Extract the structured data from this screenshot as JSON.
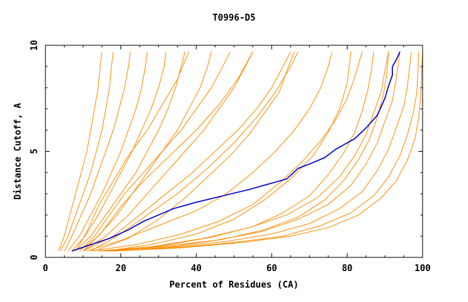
{
  "chart_data": {
    "type": "line",
    "title": "T0996-D5",
    "xlabel": "Percent of Residues (CA)",
    "ylabel": "Distance Cutoff, A",
    "xlim": [
      0,
      100
    ],
    "ylim": [
      0,
      10
    ],
    "x_ticks": [
      0,
      20,
      40,
      60,
      80,
      100
    ],
    "y_ticks": [
      0,
      5,
      10
    ],
    "grid": false,
    "colors": {
      "models": "#ff8c00",
      "highlight": "#0000cc"
    },
    "series": [
      {
        "values": [
          [
            7,
            0.3
          ],
          [
            12,
            0.6
          ],
          [
            17,
            0.9
          ],
          [
            22,
            1.3
          ],
          [
            26,
            1.7
          ],
          [
            30,
            2.0
          ],
          [
            34,
            2.3
          ],
          [
            40,
            2.6
          ],
          [
            47,
            2.9
          ],
          [
            54,
            3.2
          ],
          [
            60,
            3.5
          ],
          [
            64,
            3.7
          ],
          [
            67,
            4.2
          ],
          [
            70,
            4.4
          ],
          [
            74,
            4.7
          ],
          [
            77,
            5.1
          ],
          [
            82,
            5.6
          ],
          [
            85,
            6.1
          ],
          [
            88,
            6.7
          ],
          [
            90,
            7.5
          ],
          [
            91,
            8.1
          ],
          [
            92,
            8.6
          ],
          [
            92,
            9.0
          ],
          [
            93,
            9.3
          ],
          [
            94,
            9.7
          ]
        ]
      },
      {
        "values": [
          [
            3.5,
            0.3
          ],
          [
            5,
            1.0
          ],
          [
            6.5,
            2.0
          ],
          [
            8,
            3.0
          ],
          [
            9.5,
            4.0
          ],
          [
            11,
            5.0
          ],
          [
            12,
            6.0
          ],
          [
            13,
            7.0
          ],
          [
            14,
            8.0
          ],
          [
            14.5,
            9.0
          ],
          [
            15,
            9.7
          ]
        ]
      },
      {
        "values": [
          [
            4,
            0.3
          ],
          [
            6,
            1.0
          ],
          [
            8,
            2.0
          ],
          [
            10,
            3.0
          ],
          [
            12,
            4.0
          ],
          [
            13.5,
            5.0
          ],
          [
            15,
            6.0
          ],
          [
            16,
            7.0
          ],
          [
            17,
            8.0
          ],
          [
            17.5,
            9.0
          ],
          [
            18,
            9.7
          ]
        ]
      },
      {
        "values": [
          [
            5,
            0.3
          ],
          [
            7,
            1.0
          ],
          [
            9.5,
            2.0
          ],
          [
            12,
            3.0
          ],
          [
            14,
            4.0
          ],
          [
            16,
            5.0
          ],
          [
            18,
            6.0
          ],
          [
            19.5,
            7.0
          ],
          [
            21,
            8.0
          ],
          [
            22,
            9.0
          ],
          [
            22.5,
            9.7
          ]
        ]
      },
      {
        "values": [
          [
            6,
            0.3
          ],
          [
            9,
            1.0
          ],
          [
            12,
            2.0
          ],
          [
            15,
            3.0
          ],
          [
            17.5,
            4.0
          ],
          [
            20,
            5.0
          ],
          [
            22,
            6.0
          ],
          [
            24,
            7.0
          ],
          [
            25.5,
            8.0
          ],
          [
            26.5,
            9.0
          ],
          [
            27,
            9.7
          ]
        ]
      },
      {
        "values": [
          [
            7,
            0.3
          ],
          [
            10.5,
            1.0
          ],
          [
            14,
            2.0
          ],
          [
            17,
            3.0
          ],
          [
            20,
            4.0
          ],
          [
            23,
            5.0
          ],
          [
            25.5,
            6.0
          ],
          [
            28,
            7.0
          ],
          [
            30,
            8.0
          ],
          [
            31.5,
            9.0
          ],
          [
            32,
            9.7
          ]
        ]
      },
      {
        "values": [
          [
            8,
            0.3
          ],
          [
            12,
            1.0
          ],
          [
            16,
            2.0
          ],
          [
            20,
            3.0
          ],
          [
            24,
            4.0
          ],
          [
            27,
            5.0
          ],
          [
            30,
            6.0
          ],
          [
            32.5,
            7.0
          ],
          [
            34.5,
            8.0
          ],
          [
            36,
            9.0
          ],
          [
            37,
            9.7
          ]
        ]
      },
      {
        "values": [
          [
            9,
            0.3
          ],
          [
            14,
            1.0
          ],
          [
            19,
            2.0
          ],
          [
            23,
            3.0
          ],
          [
            27,
            4.0
          ],
          [
            31,
            5.0
          ],
          [
            35,
            6.0
          ],
          [
            38,
            7.0
          ],
          [
            41,
            8.0
          ],
          [
            43,
            9.0
          ],
          [
            44,
            9.7
          ]
        ]
      },
      {
        "values": [
          [
            10,
            0.3
          ],
          [
            16,
            1.0
          ],
          [
            22,
            2.0
          ],
          [
            27,
            3.0
          ],
          [
            32,
            4.0
          ],
          [
            37,
            5.0
          ],
          [
            42,
            6.0
          ],
          [
            46,
            7.0
          ],
          [
            50,
            8.0
          ],
          [
            53,
            9.0
          ],
          [
            55,
            9.7
          ]
        ]
      },
      {
        "values": [
          [
            10,
            0.3
          ],
          [
            18,
            1.0
          ],
          [
            25,
            2.0
          ],
          [
            32,
            3.0
          ],
          [
            39,
            4.0
          ],
          [
            45,
            5.0
          ],
          [
            51,
            6.0
          ],
          [
            56,
            7.0
          ],
          [
            60,
            8.0
          ],
          [
            63,
            9.0
          ],
          [
            65,
            9.7
          ]
        ]
      },
      {
        "values": [
          [
            11,
            0.3
          ],
          [
            20,
            0.8
          ],
          [
            30,
            1.5
          ],
          [
            40,
            2.2
          ],
          [
            48,
            3.0
          ],
          [
            55,
            4.0
          ],
          [
            61,
            5.0
          ],
          [
            66,
            6.0
          ],
          [
            70,
            7.0
          ],
          [
            73,
            8.0
          ],
          [
            75,
            9.0
          ],
          [
            76,
            9.7
          ]
        ]
      },
      {
        "values": [
          [
            12,
            0.3
          ],
          [
            24,
            0.6
          ],
          [
            36,
            1.1
          ],
          [
            46,
            1.7
          ],
          [
            55,
            2.5
          ],
          [
            62,
            3.5
          ],
          [
            68,
            4.5
          ],
          [
            73,
            5.5
          ],
          [
            77,
            6.5
          ],
          [
            80,
            7.5
          ],
          [
            82,
            8.5
          ],
          [
            84,
            9.7
          ]
        ]
      },
      {
        "values": [
          [
            14,
            0.3
          ],
          [
            28,
            0.5
          ],
          [
            42,
            0.9
          ],
          [
            54,
            1.4
          ],
          [
            64,
            2.0
          ],
          [
            72,
            2.8
          ],
          [
            78,
            3.8
          ],
          [
            82,
            4.8
          ],
          [
            85,
            5.8
          ],
          [
            87,
            6.8
          ],
          [
            89,
            7.8
          ],
          [
            90,
            8.8
          ],
          [
            91,
            9.7
          ]
        ]
      },
      {
        "values": [
          [
            15,
            0.3
          ],
          [
            30,
            0.5
          ],
          [
            45,
            0.8
          ],
          [
            57,
            1.2
          ],
          [
            67,
            1.8
          ],
          [
            75,
            2.5
          ],
          [
            81,
            3.4
          ],
          [
            85,
            4.4
          ],
          [
            88,
            5.4
          ],
          [
            90,
            6.4
          ],
          [
            92,
            7.4
          ],
          [
            93,
            8.4
          ],
          [
            94,
            9.7
          ]
        ]
      },
      {
        "values": [
          [
            16,
            0.3
          ],
          [
            32,
            0.45
          ],
          [
            48,
            0.75
          ],
          [
            60,
            1.1
          ],
          [
            70,
            1.6
          ],
          [
            78,
            2.3
          ],
          [
            84,
            3.1
          ],
          [
            88,
            4.1
          ],
          [
            91,
            5.1
          ],
          [
            93,
            6.1
          ],
          [
            95,
            7.1
          ],
          [
            96,
            8.1
          ],
          [
            97,
            9.7
          ]
        ]
      },
      {
        "values": [
          [
            17,
            0.3
          ],
          [
            34,
            0.45
          ],
          [
            50,
            0.7
          ],
          [
            63,
            1.0
          ],
          [
            73,
            1.5
          ],
          [
            81,
            2.1
          ],
          [
            87,
            2.9
          ],
          [
            91,
            3.8
          ],
          [
            94,
            4.8
          ],
          [
            96,
            5.8
          ],
          [
            97.5,
            6.8
          ],
          [
            98.5,
            7.8
          ],
          [
            99,
            9.7
          ]
        ]
      },
      {
        "values": [
          [
            18,
            0.3
          ],
          [
            36,
            0.45
          ],
          [
            52,
            0.7
          ],
          [
            65,
            1.0
          ],
          [
            75,
            1.4
          ],
          [
            83,
            2.0
          ],
          [
            89,
            2.8
          ],
          [
            93,
            3.6
          ],
          [
            96,
            4.6
          ],
          [
            98,
            5.6
          ],
          [
            99,
            6.6
          ],
          [
            99.5,
            7.6
          ],
          [
            100,
            9.7
          ]
        ]
      },
      {
        "values": [
          [
            18,
            0.3
          ],
          [
            33,
            0.5
          ],
          [
            47,
            0.85
          ],
          [
            58,
            1.3
          ],
          [
            67,
            1.9
          ],
          [
            74,
            2.7
          ],
          [
            79,
            3.6
          ],
          [
            83,
            4.6
          ],
          [
            86,
            5.6
          ],
          [
            88,
            6.6
          ],
          [
            89.5,
            7.6
          ],
          [
            90.5,
            8.6
          ],
          [
            91,
            9.7
          ]
        ]
      },
      {
        "values": [
          [
            17,
            0.3
          ],
          [
            31,
            0.55
          ],
          [
            44,
            0.95
          ],
          [
            55,
            1.45
          ],
          [
            63,
            2.1
          ],
          [
            70,
            2.9
          ],
          [
            75,
            3.9
          ],
          [
            79,
            4.9
          ],
          [
            82,
            5.9
          ],
          [
            84,
            6.9
          ],
          [
            85.5,
            7.9
          ],
          [
            86.5,
            8.9
          ],
          [
            87,
            9.7
          ]
        ]
      },
      {
        "values": [
          [
            13,
            0.3
          ],
          [
            22,
            0.9
          ],
          [
            30,
            1.8
          ],
          [
            37,
            2.8
          ],
          [
            43,
            3.8
          ],
          [
            49,
            4.8
          ],
          [
            54,
            5.8
          ],
          [
            58,
            6.8
          ],
          [
            62,
            7.8
          ],
          [
            64,
            8.8
          ],
          [
            66,
            9.7
          ]
        ]
      },
      {
        "values": [
          [
            9,
            0.3
          ],
          [
            13,
            1.0
          ],
          [
            17,
            2.0
          ],
          [
            21,
            3.0
          ],
          [
            26,
            4.0
          ],
          [
            31,
            5.0
          ],
          [
            36,
            6.0
          ],
          [
            40,
            7.0
          ],
          [
            44,
            8.0
          ],
          [
            47,
            9.0
          ],
          [
            49,
            9.7
          ]
        ]
      },
      {
        "values": [
          [
            8,
            0.3
          ],
          [
            11,
            1.2
          ],
          [
            14,
            2.4
          ],
          [
            18,
            3.6
          ],
          [
            22,
            4.8
          ],
          [
            27,
            6.0
          ],
          [
            31,
            7.2
          ],
          [
            35,
            8.4
          ],
          [
            38,
            9.7
          ]
        ]
      },
      {
        "values": [
          [
            10,
            0.3
          ],
          [
            15,
            1.2
          ],
          [
            20,
            2.4
          ],
          [
            26,
            3.6
          ],
          [
            33,
            4.8
          ],
          [
            40,
            6.0
          ],
          [
            46,
            7.2
          ],
          [
            51,
            8.4
          ],
          [
            55,
            9.7
          ]
        ]
      },
      {
        "values": [
          [
            12,
            0.3
          ],
          [
            19,
            1.0
          ],
          [
            27,
            2.0
          ],
          [
            35,
            3.0
          ],
          [
            43,
            4.2
          ],
          [
            50,
            5.4
          ],
          [
            56,
            6.6
          ],
          [
            61,
            7.8
          ],
          [
            65,
            9.0
          ],
          [
            67,
            9.7
          ]
        ]
      },
      {
        "values": [
          [
            16,
            0.3
          ],
          [
            28,
            0.6
          ],
          [
            40,
            1.1
          ],
          [
            50,
            1.8
          ],
          [
            58,
            2.7
          ],
          [
            65,
            3.7
          ],
          [
            71,
            4.8
          ],
          [
            75,
            5.9
          ],
          [
            78,
            7.0
          ],
          [
            80,
            8.2
          ],
          [
            81,
            9.7
          ]
        ]
      }
    ]
  }
}
